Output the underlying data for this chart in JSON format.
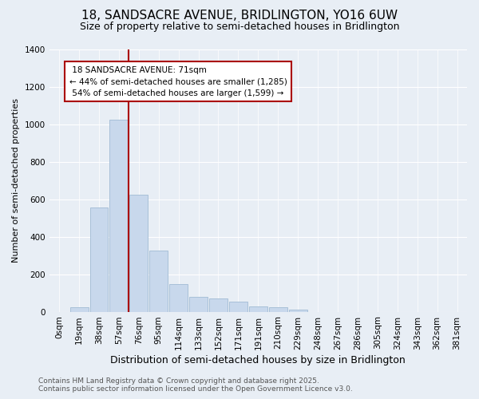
{
  "title_line1": "18, SANDSACRE AVENUE, BRIDLINGTON, YO16 6UW",
  "title_line2": "Size of property relative to semi-detached houses in Bridlington",
  "xlabel": "Distribution of semi-detached houses by size in Bridlington",
  "ylabel": "Number of semi-detached properties",
  "bar_labels": [
    "0sqm",
    "19sqm",
    "38sqm",
    "57sqm",
    "76sqm",
    "95sqm",
    "114sqm",
    "133sqm",
    "152sqm",
    "171sqm",
    "191sqm",
    "210sqm",
    "229sqm",
    "248sqm",
    "267sqm",
    "286sqm",
    "305sqm",
    "324sqm",
    "343sqm",
    "362sqm",
    "381sqm"
  ],
  "bar_values": [
    0,
    25,
    555,
    1025,
    625,
    325,
    145,
    80,
    70,
    55,
    30,
    25,
    10,
    0,
    0,
    0,
    0,
    0,
    0,
    0,
    0
  ],
  "bar_color": "#c8d8ec",
  "bar_edgecolor": "#a8c0d8",
  "vline_x": 3.5,
  "property_line_label": "18 SANDSACRE AVENUE: 71sqm",
  "smaller_pct": "44%",
  "smaller_count": "1,285",
  "larger_pct": "54%",
  "larger_count": "1,599",
  "annotation_box_color": "#ffffff",
  "annotation_box_edgecolor": "#aa0000",
  "vline_color": "#aa0000",
  "footer_line1": "Contains HM Land Registry data © Crown copyright and database right 2025.",
  "footer_line2": "Contains public sector information licensed under the Open Government Licence v3.0.",
  "bg_color": "#e8eef5",
  "ylim": [
    0,
    1400
  ],
  "yticks": [
    0,
    200,
    400,
    600,
    800,
    1000,
    1200,
    1400
  ],
  "title_fontsize": 11,
  "subtitle_fontsize": 9,
  "xlabel_fontsize": 9,
  "ylabel_fontsize": 8,
  "tick_fontsize": 7.5,
  "annot_fontsize": 7.5,
  "footer_fontsize": 6.5
}
